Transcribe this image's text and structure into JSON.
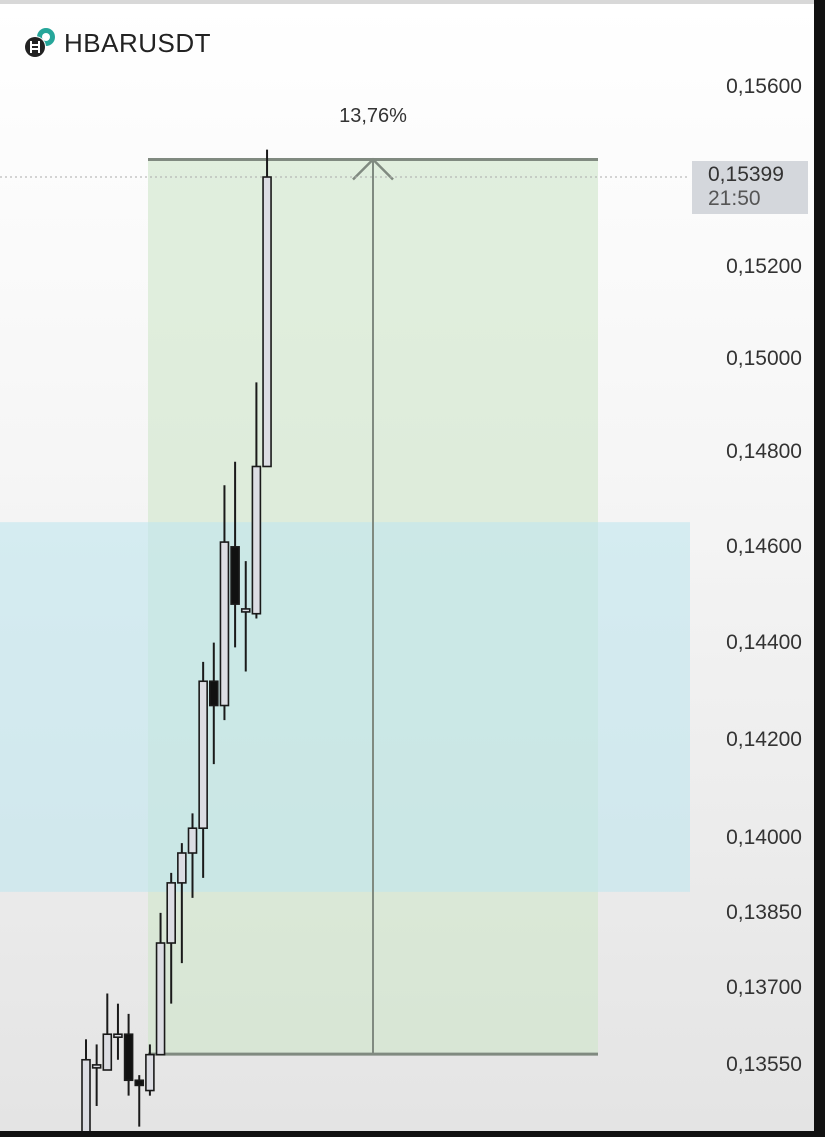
{
  "header": {
    "symbol": "HBARUSDT",
    "icon": "hbar-usdt-coin-icon"
  },
  "colors": {
    "up_body": "#dcdde3",
    "down_body": "#111111",
    "outline": "#1a1a1a",
    "measure_fill": "#cfe6c9",
    "measure_line": "#808a80",
    "zone_fill": "#bfe6ee",
    "last_price_bg": "#d4d7dc"
  },
  "chart_data": {
    "type": "candlestick",
    "symbol": "HBARUSDT",
    "y_scale": "log",
    "ylim": [
      0.134,
      0.1565
    ],
    "grid": false,
    "y_ticks": [
      {
        "value": 0.156,
        "label": "0,15600"
      },
      {
        "value": 0.152,
        "label": "0,15200"
      },
      {
        "value": 0.15,
        "label": "0,15000"
      },
      {
        "value": 0.148,
        "label": "0,14800"
      },
      {
        "value": 0.146,
        "label": "0,14600"
      },
      {
        "value": 0.144,
        "label": "0,14400"
      },
      {
        "value": 0.142,
        "label": "0,14200"
      },
      {
        "value": 0.14,
        "label": "0,14000"
      },
      {
        "value": 0.1385,
        "label": "0,13850"
      },
      {
        "value": 0.137,
        "label": "0,13700"
      },
      {
        "value": 0.1355,
        "label": "0,13550"
      }
    ],
    "candles": [
      {
        "o": 0.134,
        "h": 0.136,
        "l": 0.1335,
        "c": 0.1356
      },
      {
        "o": 0.1355,
        "h": 0.1359,
        "l": 0.1347,
        "c": 0.1355
      },
      {
        "o": 0.1354,
        "h": 0.1369,
        "l": 0.1354,
        "c": 0.1361
      },
      {
        "o": 0.1361,
        "h": 0.1367,
        "l": 0.1356,
        "c": 0.1361
      },
      {
        "o": 0.1361,
        "h": 0.1365,
        "l": 0.1349,
        "c": 0.1352
      },
      {
        "o": 0.1352,
        "h": 0.1353,
        "l": 0.1343,
        "c": 0.1351
      },
      {
        "o": 0.135,
        "h": 0.1359,
        "l": 0.1349,
        "c": 0.1357
      },
      {
        "o": 0.1357,
        "h": 0.1385,
        "l": 0.1357,
        "c": 0.1379
      },
      {
        "o": 0.1379,
        "h": 0.1393,
        "l": 0.1367,
        "c": 0.1391
      },
      {
        "o": 0.1391,
        "h": 0.1399,
        "l": 0.1375,
        "c": 0.1397
      },
      {
        "o": 0.1397,
        "h": 0.1405,
        "l": 0.1388,
        "c": 0.1402
      },
      {
        "o": 0.1402,
        "h": 0.1436,
        "l": 0.1392,
        "c": 0.1432
      },
      {
        "o": 0.1432,
        "h": 0.144,
        "l": 0.1415,
        "c": 0.1427
      },
      {
        "o": 0.1427,
        "h": 0.1473,
        "l": 0.1424,
        "c": 0.1461
      },
      {
        "o": 0.146,
        "h": 0.1478,
        "l": 0.1439,
        "c": 0.1448
      },
      {
        "o": 0.1447,
        "h": 0.1457,
        "l": 0.1434,
        "c": 0.1447
      },
      {
        "o": 0.1446,
        "h": 0.1495,
        "l": 0.1445,
        "c": 0.1477
      },
      {
        "o": 0.1477,
        "h": 0.1546,
        "l": 0.1477,
        "c": 0.15399
      }
    ],
    "last_price": {
      "value": 0.15399,
      "label": "0,15399",
      "time": "21:50"
    },
    "measure": {
      "from": 0.13571,
      "to": 0.15438,
      "label": "13,76%"
    },
    "zone": {
      "from": 0.13892,
      "to": 0.14652
    }
  }
}
